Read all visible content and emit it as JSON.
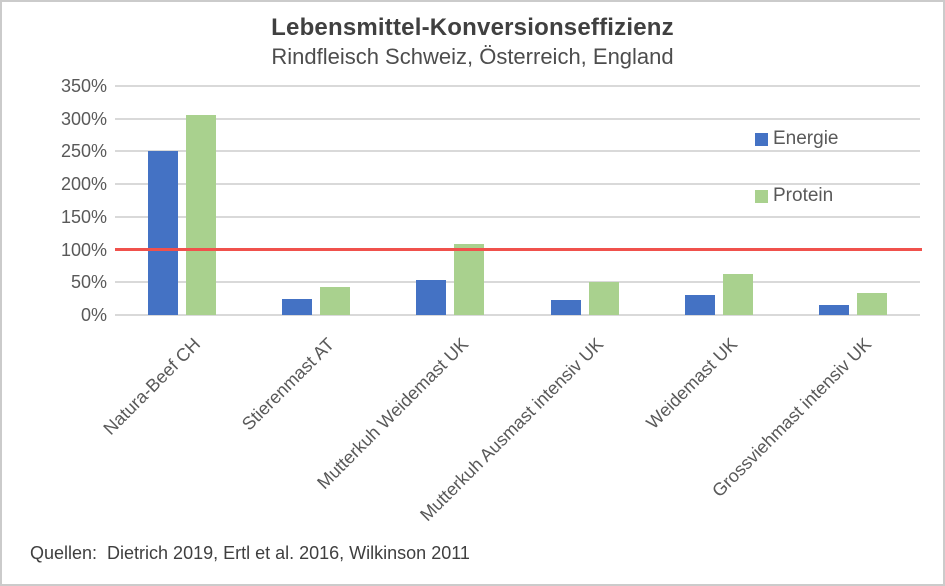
{
  "source_note": "Quellen:  Dietrich 2019, Ertl et al. 2016, Wilkinson 2011",
  "colors": {
    "energie": "#4472C4",
    "protein": "#A9D18E",
    "reference_line": "#F0514C",
    "gridline": "#D9D9D9",
    "axis_text": "#595959",
    "title_text": "#404040"
  },
  "chart_data": {
    "type": "bar",
    "title": "Lebensmittel-Konversionseffizienz",
    "subtitle": "Rindfleisch Schweiz, Österreich, England",
    "categories": [
      "Natura-Beef CH",
      "Stierenmast AT",
      "Mutterkuh Weidemast UK",
      "Mutterkuh Ausmast intensiv UK",
      "Weidemast UK",
      "Grossviehmast intensiv UK"
    ],
    "series": [
      {
        "name": "Energie",
        "color": "#4472C4",
        "values": [
          250,
          25,
          53,
          23,
          31,
          15
        ]
      },
      {
        "name": "Protein",
        "color": "#A9D18E",
        "values": [
          306,
          43,
          108,
          50,
          62,
          33
        ]
      }
    ],
    "xlabel": "",
    "ylabel": "",
    "ylim": [
      0,
      350
    ],
    "y_tick_step": 50,
    "y_tick_suffix": "%",
    "y_tick_labels": [
      "350%",
      "300%",
      "250%",
      "200%",
      "150%",
      "100%",
      "50%",
      "0%"
    ],
    "reference_line": {
      "value": 100,
      "label": ""
    },
    "grid": true,
    "legend_position": "right",
    "legend_labels": [
      "Energie",
      "Protein"
    ]
  }
}
